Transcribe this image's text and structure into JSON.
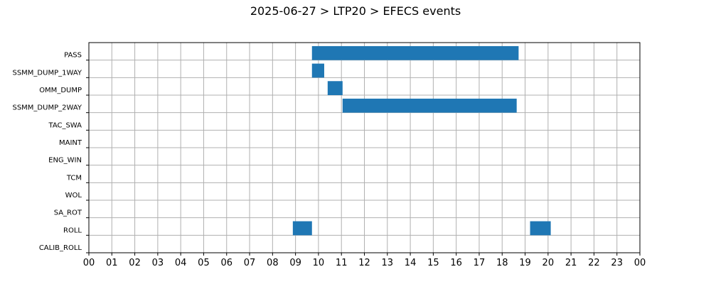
{
  "chart_data": {
    "type": "gantt",
    "title": "2025-06-27 > LTP20 > EFECS events",
    "xlabel": "",
    "ylabel": "",
    "x_unit": "hour of day",
    "xlim": [
      0,
      24
    ],
    "x_tick_labels": [
      "00",
      "01",
      "02",
      "03",
      "04",
      "05",
      "06",
      "07",
      "08",
      "09",
      "10",
      "11",
      "12",
      "13",
      "14",
      "15",
      "16",
      "17",
      "18",
      "19",
      "20",
      "21",
      "22",
      "23",
      "00"
    ],
    "categories": [
      "PASS",
      "SSMM_DUMP_1WAY",
      "OMM_DUMP",
      "SSMM_DUMP_2WAY",
      "TAC_SWA",
      "MAINT",
      "ENG_WIN",
      "TCM",
      "WOL",
      "SA_ROT",
      "ROLL",
      "CALIB_ROLL"
    ],
    "grid": true,
    "bar_color": "#1f77b4",
    "events": [
      {
        "category": "PASS",
        "start": "09:43",
        "end": "18:43"
      },
      {
        "category": "SSMM_DUMP_1WAY",
        "start": "09:43",
        "end": "10:15"
      },
      {
        "category": "OMM_DUMP",
        "start": "10:24",
        "end": "11:03"
      },
      {
        "category": "SSMM_DUMP_2WAY",
        "start": "11:03",
        "end": "18:38"
      },
      {
        "category": "ROLL",
        "start": "08:53",
        "end": "09:43"
      },
      {
        "category": "ROLL",
        "start": "19:13",
        "end": "20:07"
      }
    ]
  }
}
